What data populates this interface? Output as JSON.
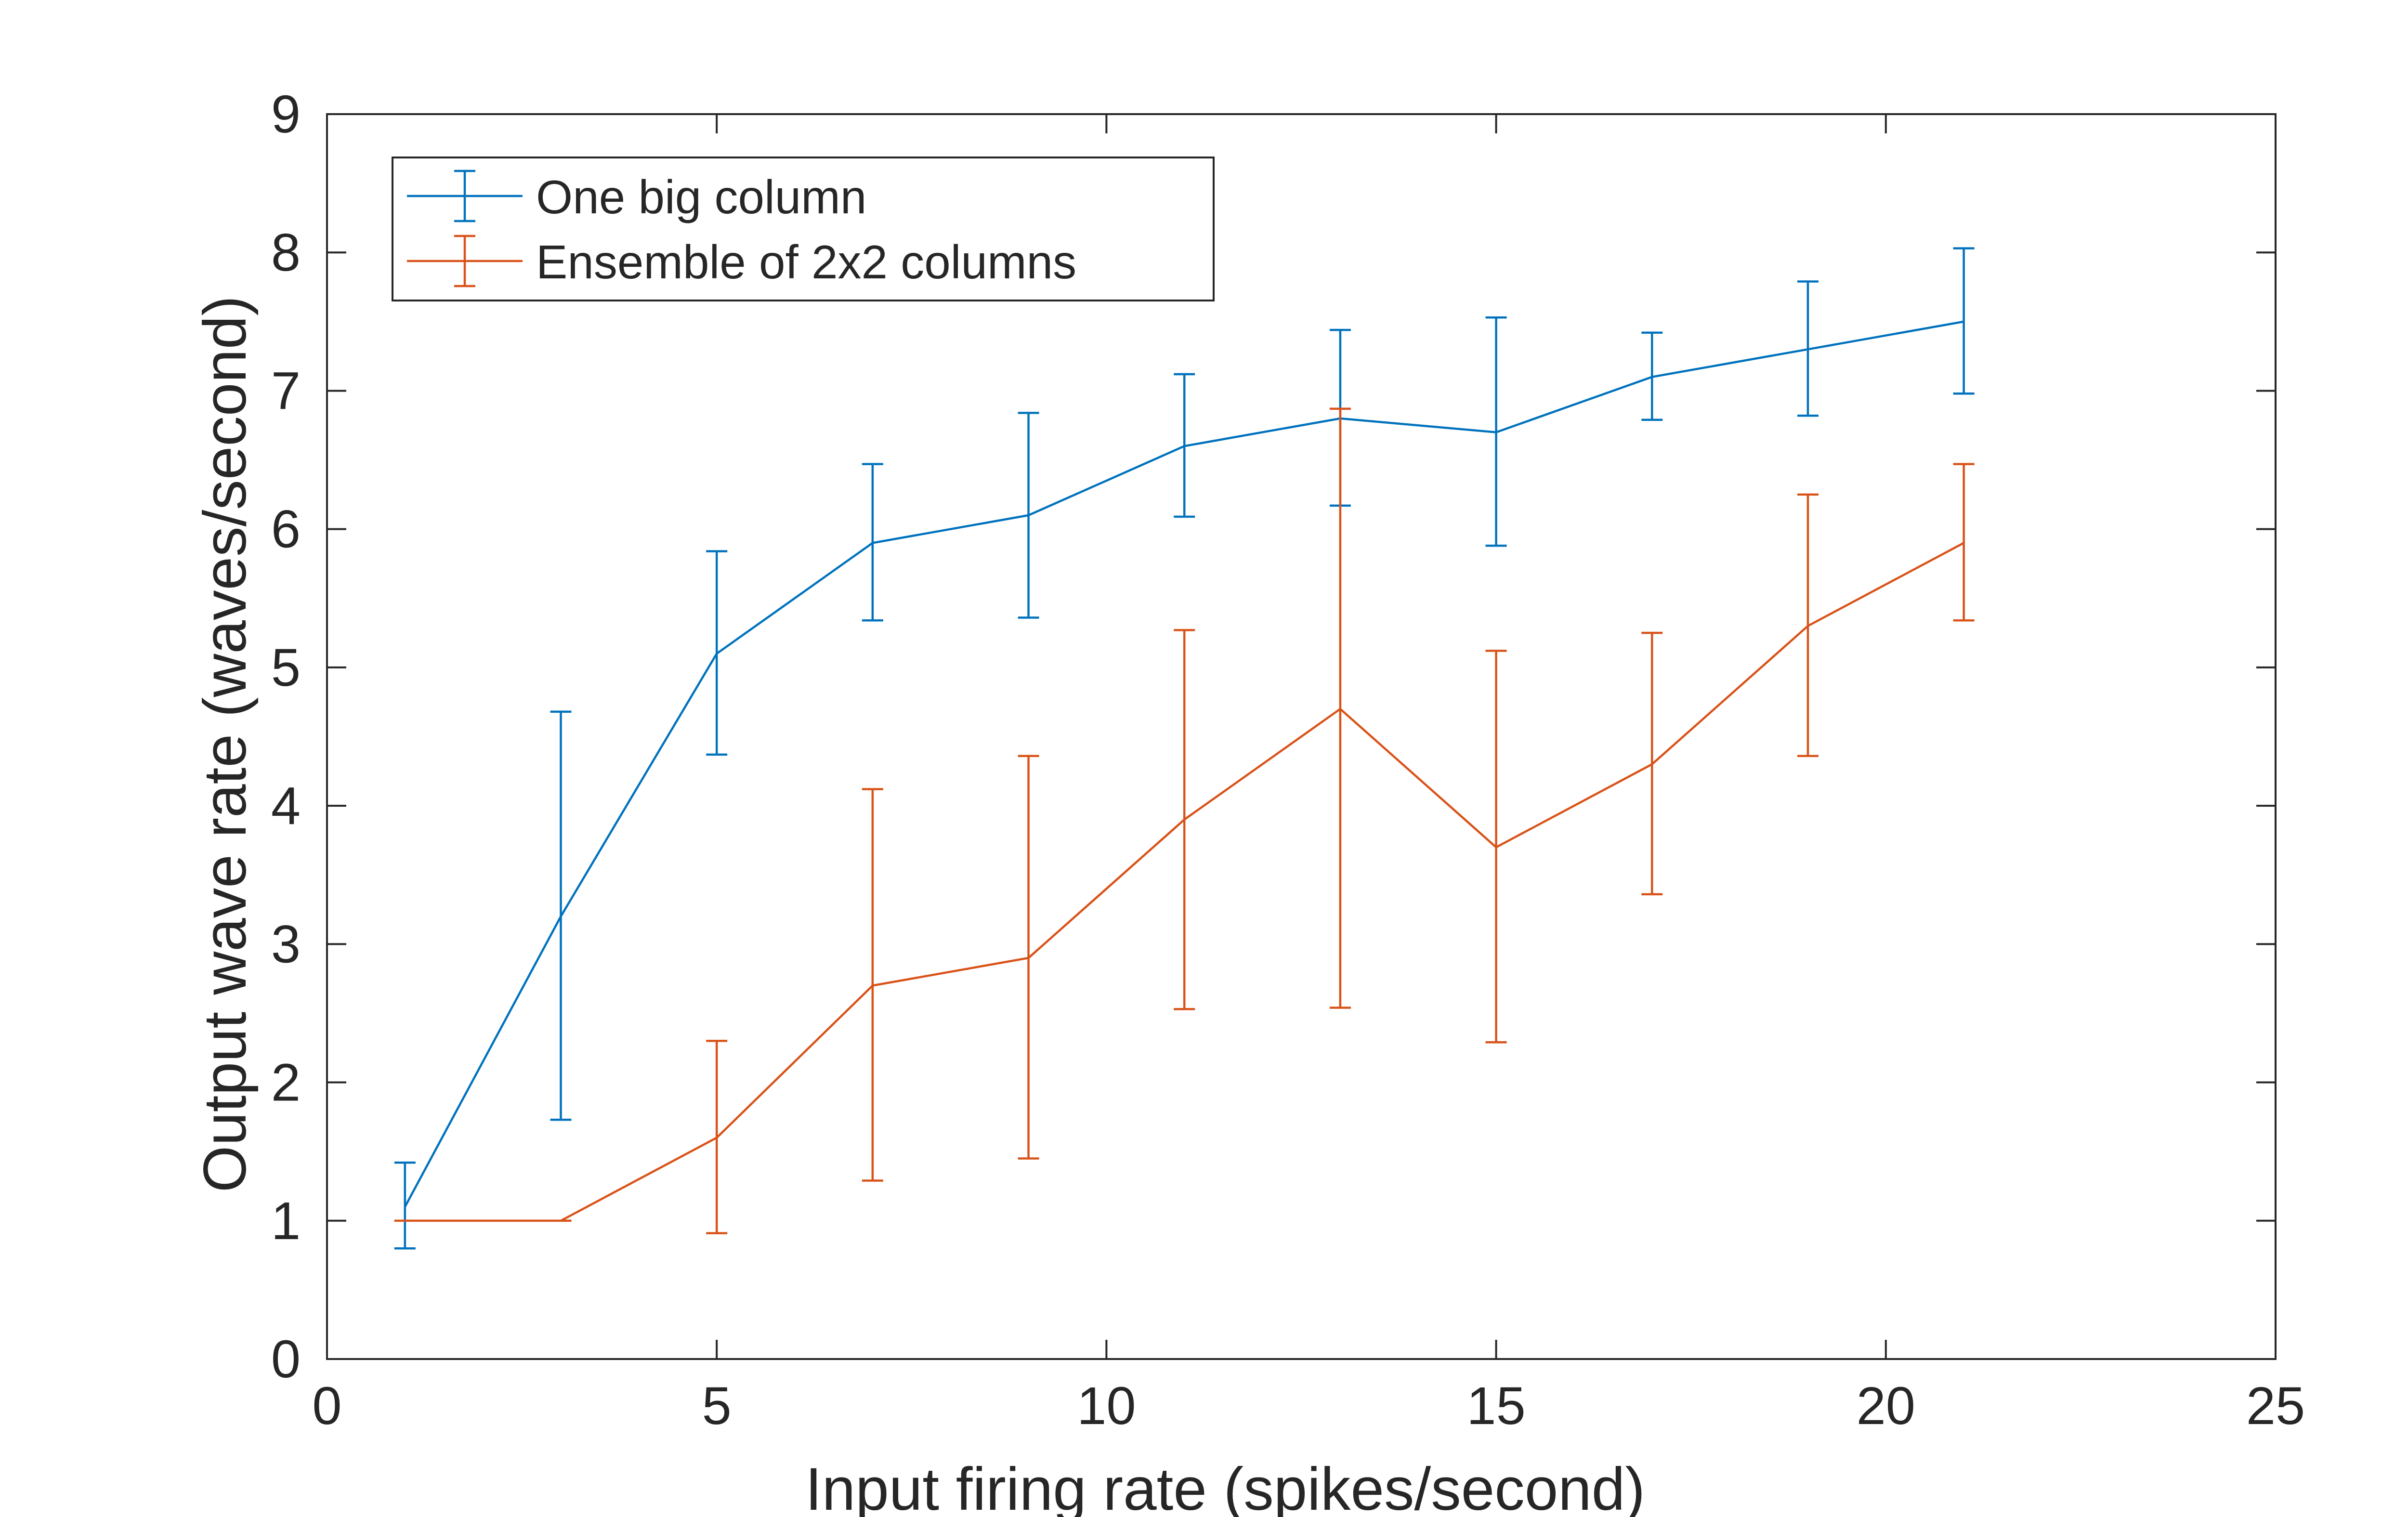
{
  "chart_data": {
    "type": "line",
    "title": "",
    "xlabel": "Input firing rate (spikes/second)",
    "ylabel": "Output wave rate (waves/second)",
    "xlim": [
      0,
      25
    ],
    "ylim": [
      0,
      9
    ],
    "xticks": [
      0,
      5,
      10,
      15,
      20,
      25
    ],
    "yticks": [
      0,
      1,
      2,
      3,
      4,
      5,
      6,
      7,
      8,
      9
    ],
    "grid": false,
    "legend_position": "top-left",
    "error_bars": true,
    "x": [
      1,
      3,
      5,
      7,
      9,
      11,
      13,
      15,
      17,
      19,
      21
    ],
    "series": [
      {
        "name": "One big column",
        "color": "#0072BD",
        "values": [
          1.1,
          3.2,
          5.1,
          5.9,
          6.1,
          6.6,
          6.8,
          6.7,
          7.1,
          7.3,
          7.5
        ],
        "lower": [
          0.8,
          1.73,
          4.37,
          5.34,
          5.36,
          6.09,
          6.17,
          5.88,
          6.79,
          6.82,
          6.98
        ],
        "upper": [
          1.42,
          4.68,
          5.84,
          6.47,
          6.84,
          7.12,
          7.44,
          7.53,
          7.42,
          7.79,
          8.03
        ]
      },
      {
        "name": "Ensemble of 2x2 columns",
        "color": "#D95319",
        "values": [
          1.0,
          1.0,
          1.6,
          2.7,
          2.9,
          3.9,
          4.7,
          3.7,
          4.3,
          5.3,
          5.9
        ],
        "lower": [
          1.0,
          1.0,
          0.91,
          1.29,
          1.45,
          2.53,
          2.54,
          2.29,
          3.36,
          4.36,
          5.34
        ],
        "upper": [
          1.0,
          1.0,
          2.3,
          4.12,
          4.36,
          5.27,
          6.87,
          5.12,
          5.25,
          6.25,
          6.47
        ]
      }
    ]
  }
}
